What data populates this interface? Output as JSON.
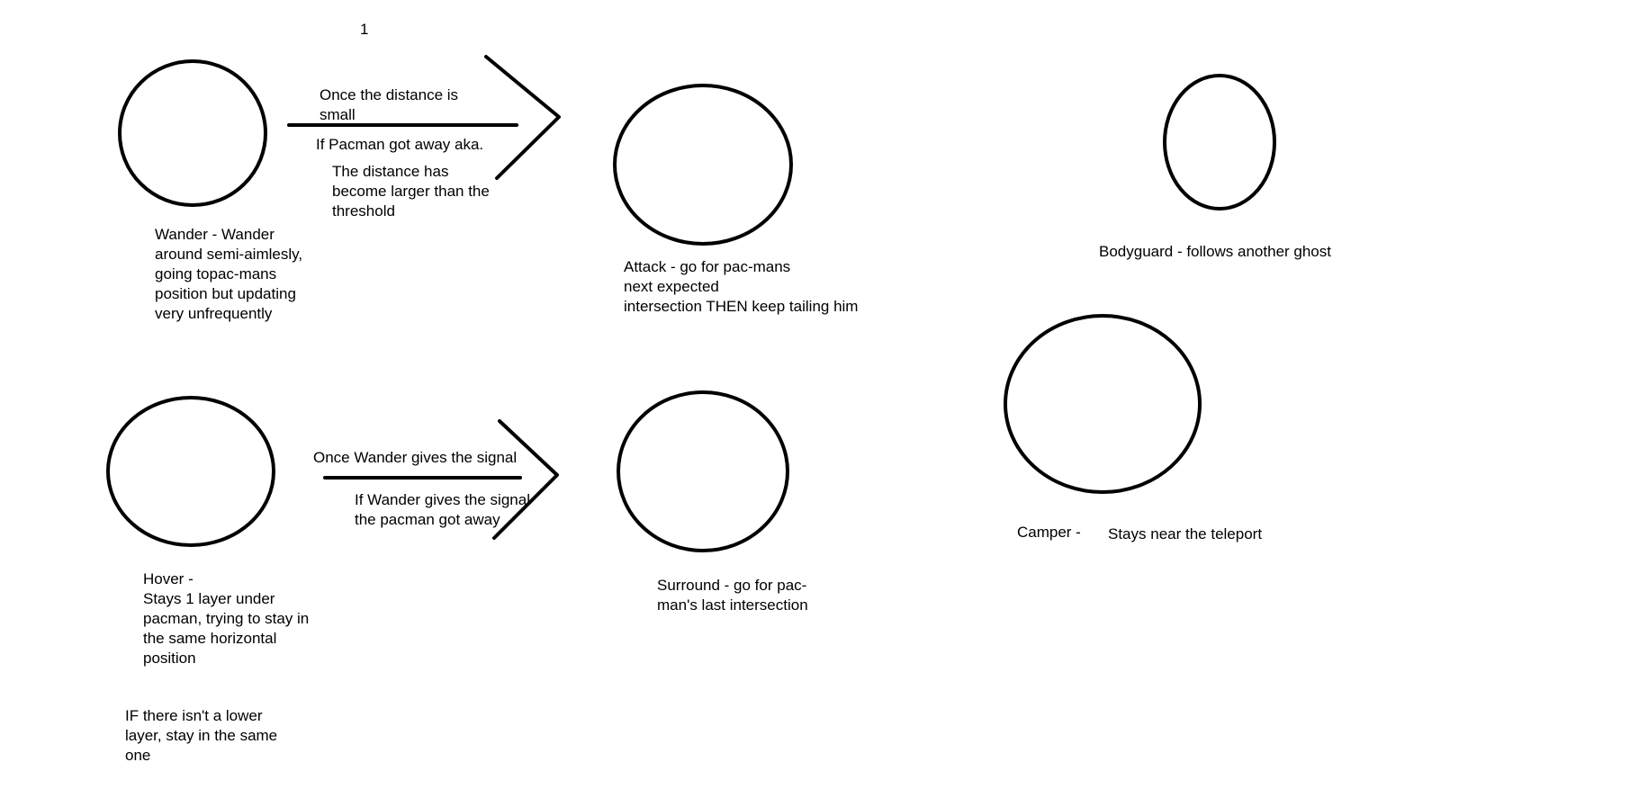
{
  "page_number": "1",
  "states": {
    "wander": {
      "label": "Wander - Wander\naround semi-aimlesly,\ngoing topac-mans\nposition but updating\nvery unfrequently"
    },
    "attack": {
      "label": "Attack - go for pac-mans\nnext expected\nintersection   THEN keep tailing him"
    },
    "bodyguard": {
      "label": "Bodyguard - follows another ghost"
    },
    "hover": {
      "label": "Hover -\nStays 1 layer under\npacman, trying to stay in\nthe same horizontal\nposition"
    },
    "hover_note": {
      "label": "IF there isn't a lower\nlayer, stay in the same\none"
    },
    "surround": {
      "label": "Surround - go for pac-\nman's last intersection"
    },
    "camper": {
      "label": "Camper -",
      "description": "Stays near the teleport"
    }
  },
  "transitions": {
    "wander_to_attack": "Once the distance is\nsmall",
    "attack_to_wander": "If Pacman got away aka.",
    "attack_to_wander_detail": "The distance has\nbecome larger than the\nthreshold",
    "hover_to_surround": "Once Wander gives the signal",
    "surround_to_hover": "If Wander gives the signal\nthe pacman got away"
  }
}
